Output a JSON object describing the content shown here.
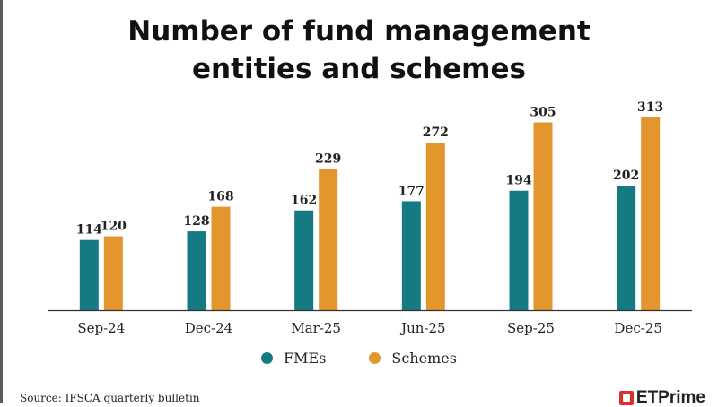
{
  "title_lines": [
    "Number of fund management",
    "entities and schemes"
  ],
  "source": "Source: IFSCA quarterly bulletin",
  "brand": "ETPrime",
  "colors": {
    "fmes": "#157a82",
    "schemes": "#e3962e",
    "axis": "#333333",
    "label": "#222222"
  },
  "legend": [
    {
      "name": "FMEs",
      "color": "#157a82"
    },
    {
      "name": "Schemes",
      "color": "#e3962e"
    }
  ],
  "chart_data": {
    "type": "bar",
    "title": "Number of fund management entities and schemes",
    "categories": [
      "Sep-24",
      "Dec-24",
      "Mar-25",
      "Jun-25",
      "Sep-25",
      "Dec-25"
    ],
    "series": [
      {
        "name": "FMEs",
        "values": [
          114,
          128,
          162,
          177,
          194,
          202
        ]
      },
      {
        "name": "Schemes",
        "values": [
          120,
          168,
          229,
          272,
          305,
          313
        ]
      }
    ],
    "ylim": [
      0,
      313
    ],
    "grid": false,
    "legend_position": "bottom",
    "data_labels": true
  }
}
